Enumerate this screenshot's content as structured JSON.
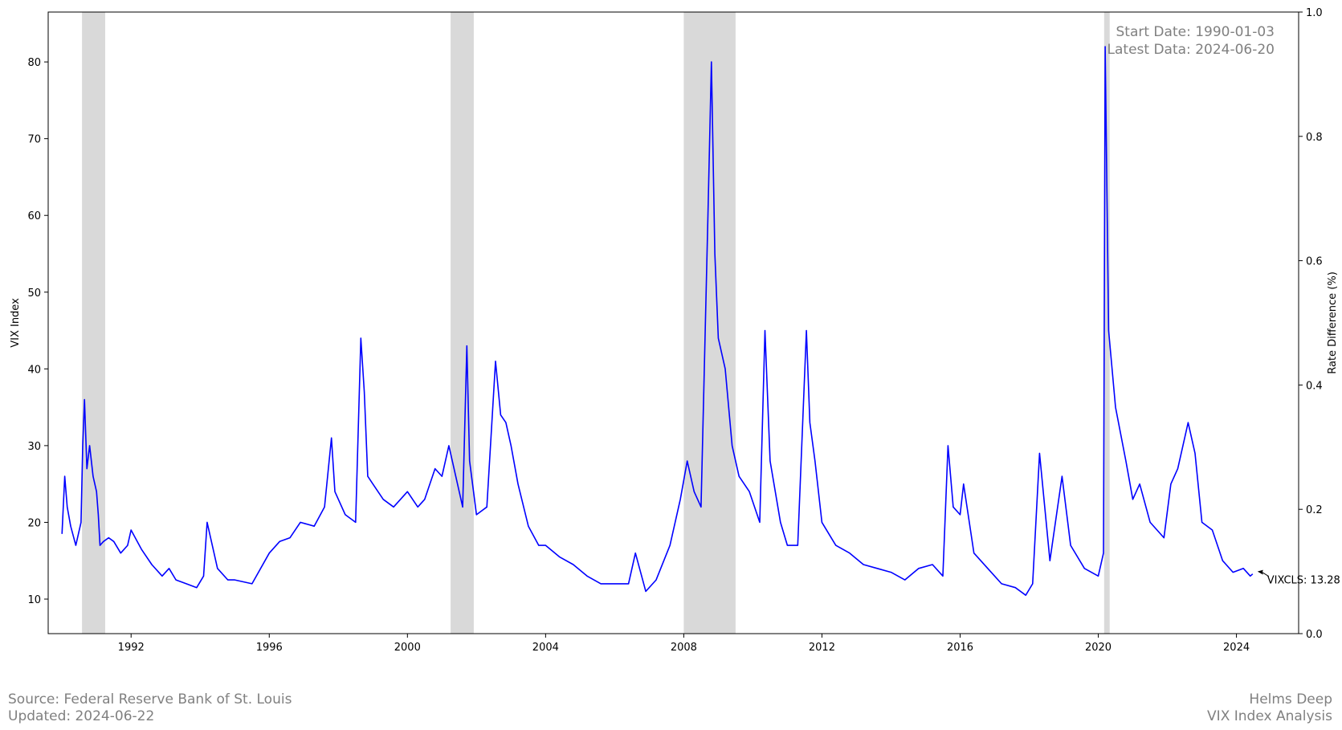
{
  "chart_data": {
    "type": "line",
    "title": "",
    "ylabel": "VIX Index",
    "y2label": "Rate Difference (%)",
    "xlim": [
      1989.6,
      2025.8
    ],
    "ylim": [
      5.5,
      86.5
    ],
    "y2lim": [
      0.0,
      1.0
    ],
    "x_ticks": [
      "1992",
      "1996",
      "2000",
      "2004",
      "2008",
      "2012",
      "2016",
      "2020",
      "2024"
    ],
    "y_ticks": [
      "10",
      "20",
      "30",
      "40",
      "50",
      "60",
      "70",
      "80"
    ],
    "y2_ticks": [
      "0.0",
      "0.2",
      "0.4",
      "0.6",
      "0.8",
      "1.0"
    ],
    "recession_shading": [
      {
        "start": 1990.58,
        "end": 1991.25
      },
      {
        "start": 2001.25,
        "end": 2001.92
      },
      {
        "start": 2008.0,
        "end": 2009.5
      },
      {
        "start": 2020.17,
        "end": 2020.33
      }
    ],
    "series": [
      {
        "name": "VIXCLS",
        "color": "#0000ff",
        "x": [
          1990.0,
          1990.08,
          1990.15,
          1990.25,
          1990.4,
          1990.55,
          1990.6,
          1990.65,
          1990.72,
          1990.8,
          1990.9,
          1991.0,
          1991.05,
          1991.1,
          1991.2,
          1991.35,
          1991.5,
          1991.7,
          1991.9,
          1992.0,
          1992.3,
          1992.6,
          1992.9,
          1993.1,
          1993.3,
          1993.6,
          1993.9,
          1994.1,
          1994.2,
          1994.5,
          1994.8,
          1995.0,
          1995.5,
          1996.0,
          1996.3,
          1996.6,
          1996.9,
          1997.3,
          1997.6,
          1997.8,
          1997.9,
          1998.2,
          1998.5,
          1998.65,
          1998.75,
          1998.85,
          1999.0,
          1999.3,
          1999.6,
          2000.0,
          2000.3,
          2000.5,
          2000.8,
          2001.0,
          2001.2,
          2001.4,
          2001.6,
          2001.72,
          2001.8,
          2002.0,
          2002.3,
          2002.55,
          2002.7,
          2002.85,
          2003.0,
          2003.2,
          2003.5,
          2003.8,
          2004.0,
          2004.4,
          2004.8,
          2005.2,
          2005.6,
          2006.0,
          2006.4,
          2006.6,
          2006.9,
          2007.2,
          2007.6,
          2007.9,
          2008.1,
          2008.3,
          2008.5,
          2008.7,
          2008.8,
          2008.9,
          2009.0,
          2009.2,
          2009.4,
          2009.6,
          2009.9,
          2010.2,
          2010.35,
          2010.5,
          2010.8,
          2011.0,
          2011.3,
          2011.55,
          2011.65,
          2011.8,
          2012.0,
          2012.4,
          2012.8,
          2013.2,
          2013.6,
          2014.0,
          2014.4,
          2014.8,
          2015.2,
          2015.5,
          2015.65,
          2015.8,
          2016.0,
          2016.1,
          2016.4,
          2016.8,
          2017.2,
          2017.6,
          2017.9,
          2018.1,
          2018.3,
          2018.6,
          2018.95,
          2019.2,
          2019.6,
          2020.0,
          2020.15,
          2020.2,
          2020.3,
          2020.5,
          2020.8,
          2021.0,
          2021.2,
          2021.5,
          2021.9,
          2022.1,
          2022.3,
          2022.6,
          2022.8,
          2023.0,
          2023.3,
          2023.6,
          2023.9,
          2024.2,
          2024.4,
          2024.47
        ],
        "y": [
          18.5,
          26,
          22,
          19.5,
          17,
          20,
          30,
          36,
          27,
          30,
          26,
          24,
          21,
          17,
          17.5,
          18,
          17.5,
          16,
          17,
          19,
          16.5,
          14.5,
          13,
          14,
          12.5,
          12,
          11.5,
          13,
          20,
          14,
          12.5,
          12.5,
          12,
          16,
          17.5,
          18,
          20,
          19.5,
          22,
          31,
          24,
          21,
          20,
          44,
          37,
          26,
          25,
          23,
          22,
          24,
          22,
          23,
          27,
          26,
          30,
          26,
          22,
          43,
          28,
          21,
          22,
          41,
          34,
          33,
          30,
          25,
          19.5,
          17,
          17,
          15.5,
          14.5,
          13,
          12,
          12,
          12,
          16,
          11,
          12.5,
          17,
          23,
          28,
          24,
          22,
          60,
          80,
          55,
          44,
          40,
          30,
          26,
          24,
          20,
          45,
          28,
          20,
          17,
          17,
          45,
          33,
          28,
          20,
          17,
          16,
          14.5,
          14,
          13.5,
          12.5,
          14,
          14.5,
          13,
          30,
          22,
          21,
          25,
          16,
          14,
          12,
          11.5,
          10.5,
          12,
          29,
          15,
          26,
          17,
          14,
          13,
          16,
          82,
          45,
          35,
          28,
          23,
          25,
          20,
          18,
          25,
          27,
          33,
          29,
          20,
          19,
          15,
          13.5,
          14,
          13,
          13.28
        ]
      }
    ],
    "annotation": {
      "text": "VIXCLS: 13.28",
      "x": 2024.47,
      "y": 13.28
    }
  },
  "info_box": {
    "start_date": "Start Date: 1990-01-03",
    "latest_data": "Latest Data: 2024-06-20"
  },
  "footer": {
    "source": "Source: Federal Reserve Bank of St. Louis",
    "updated": "Updated: 2024-06-22",
    "brand": "Helms Deep",
    "analysis": "VIX Index Analysis"
  }
}
